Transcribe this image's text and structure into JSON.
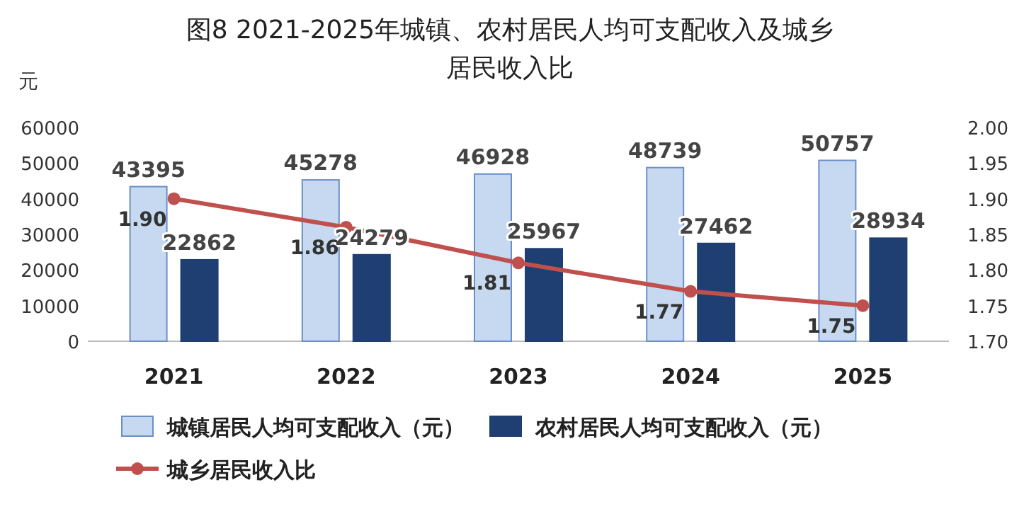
{
  "chart_data": {
    "type": "bar",
    "title": "图8 2021-2025年城镇、农村居民人均可支配收入及城乡居民收入比",
    "ylabel": "元",
    "categories": [
      "2021",
      "2022",
      "2023",
      "2024",
      "2025"
    ],
    "series": [
      {
        "name": "城镇居民人均可支配收入（元）",
        "color": "#c6d9f1",
        "values": [
          43395,
          45278,
          46928,
          48739,
          50757
        ]
      },
      {
        "name": "农村居民人均可支配收入（元）",
        "color": "#1f3f73",
        "values": [
          22862,
          24279,
          25967,
          27462,
          28934
        ]
      },
      {
        "name": "城乡居民收入比",
        "type": "line",
        "axis": "y2",
        "color": "#c0504d",
        "marker": "circle",
        "values": [
          1.9,
          1.86,
          1.81,
          1.77,
          1.75
        ],
        "value_labels": [
          "1.90",
          "1.86",
          "1.81",
          "1.77",
          "1.75"
        ]
      }
    ],
    "ylim": [
      0,
      60000
    ],
    "yticks": [
      0,
      10000,
      20000,
      30000,
      40000,
      50000,
      60000
    ],
    "y2lim": [
      1.7,
      2.0
    ],
    "y2ticks": [
      {
        "value": 1.7,
        "label": "1.70"
      },
      {
        "value": 1.75,
        "label": "1.75"
      },
      {
        "value": 1.8,
        "label": "1.80"
      },
      {
        "value": 1.85,
        "label": "1.85"
      },
      {
        "value": 1.9,
        "label": "1.90"
      },
      {
        "value": 1.95,
        "label": "1.95"
      },
      {
        "value": 2.0,
        "label": "2.00"
      }
    ],
    "data_labels": true,
    "legend": "bottom",
    "grid": false
  }
}
